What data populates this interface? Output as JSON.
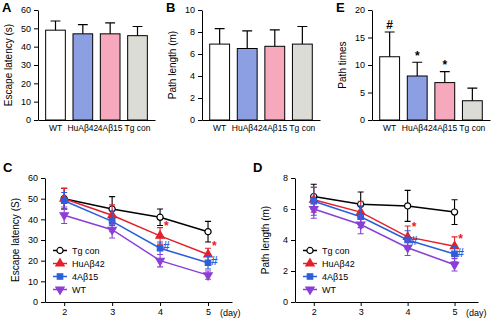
{
  "chart_data": [
    {
      "type": "bar",
      "panel": "A",
      "ylabel": "Escape latency (s)",
      "categories": [
        "WT",
        "HuAβ42",
        "4Aβ15",
        "Tg con"
      ],
      "values": [
        49,
        47,
        47,
        46
      ],
      "errors": [
        5,
        5,
        6,
        5
      ],
      "colors": [
        "#ffffff",
        "#8d9fe3",
        "#f6a9bd",
        "#dcdcd6"
      ],
      "ylim": [
        0,
        60
      ],
      "yticks": [
        0,
        10,
        20,
        30,
        40,
        50,
        60
      ]
    },
    {
      "type": "bar",
      "panel": "B",
      "ylabel": "Path length (m)",
      "categories": [
        "WT",
        "HuAβ42",
        "4Aβ15",
        "Tg con"
      ],
      "values": [
        6.9,
        6.5,
        6.7,
        6.9
      ],
      "errors": [
        1.4,
        1.6,
        1.5,
        1.6
      ],
      "colors": [
        "#ffffff",
        "#8d9fe3",
        "#f6a9bd",
        "#dcdcd6"
      ],
      "ylim": [
        0,
        10
      ],
      "yticks": [
        0,
        2,
        4,
        6,
        8,
        10
      ]
    },
    {
      "type": "bar",
      "panel": "E",
      "ylabel": "Path times",
      "categories": [
        "WT",
        "HuAβ42",
        "4Aβ15",
        "Tg con"
      ],
      "values": [
        11.5,
        8,
        6.8,
        3.5
      ],
      "errors": [
        4.5,
        2.5,
        2,
        2.3
      ],
      "colors": [
        "#ffffff",
        "#8d9fe3",
        "#f6a9bd",
        "#dcdcd6"
      ],
      "ylim": [
        0,
        20
      ],
      "yticks": [
        0,
        5,
        10,
        15,
        20
      ],
      "annotations": [
        {
          "text": "#",
          "x": "WT",
          "y": 16.6,
          "color": "#000000"
        },
        {
          "text": "*",
          "x": "HuAβ42",
          "y": 11,
          "color": "#000000"
        },
        {
          "text": "*",
          "x": "4Aβ15",
          "y": 9.2,
          "color": "#000000"
        }
      ]
    },
    {
      "type": "line",
      "panel": "C",
      "ylabel": "Escape latency (S)",
      "xlabel": "(day)",
      "x": [
        2,
        3,
        4,
        5
      ],
      "xlim": [
        1.6,
        5.5
      ],
      "xticks": [
        2,
        3,
        4,
        5
      ],
      "ylim": [
        0,
        60
      ],
      "yticks": [
        0,
        10,
        20,
        30,
        40,
        50,
        60
      ],
      "legend": "lower left",
      "series": [
        {
          "name": "Tg con",
          "color": "#000000",
          "marker": "circle-open",
          "values": [
            50,
            45,
            41,
            34
          ],
          "errors": [
            5,
            6,
            4,
            5
          ]
        },
        {
          "name": "HuAβ42",
          "color": "#e3202b",
          "marker": "triangle",
          "values": [
            50,
            42,
            32,
            23
          ],
          "errors": [
            5,
            5,
            4,
            3
          ]
        },
        {
          "name": "4Aβ15",
          "color": "#2b5fd8",
          "marker": "square",
          "values": [
            49,
            39,
            26,
            19
          ],
          "errors": [
            4,
            5,
            3,
            3
          ]
        },
        {
          "name": "WT",
          "color": "#8b3fd8",
          "marker": "triangle-down",
          "values": [
            42,
            35,
            20,
            13
          ],
          "errors": [
            4,
            4,
            3,
            2
          ]
        }
      ],
      "annotations": [
        {
          "text": "*",
          "x": 4.13,
          "y": 35,
          "color": "#e3202b"
        },
        {
          "text": "*",
          "x": 5.13,
          "y": 25,
          "color": "#e3202b"
        },
        {
          "text": "#",
          "x": 4.13,
          "y": 25,
          "color": "#2b5fd8"
        },
        {
          "text": "#",
          "x": 5.13,
          "y": 18,
          "color": "#2b5fd8"
        }
      ]
    },
    {
      "type": "line",
      "panel": "D",
      "ylabel": "Path length (m)",
      "xlabel": "(day)",
      "x": [
        2,
        3,
        4,
        5
      ],
      "xlim": [
        1.6,
        5.5
      ],
      "xticks": [
        2,
        3,
        4,
        5
      ],
      "ylim": [
        0,
        8
      ],
      "yticks": [
        0,
        2,
        4,
        6,
        8
      ],
      "legend": "lower left",
      "series": [
        {
          "name": "Tg con",
          "color": "#000000",
          "marker": "circle-open",
          "values": [
            6.8,
            6.3,
            6.2,
            5.8
          ],
          "errors": [
            0.8,
            0.8,
            1.0,
            0.8
          ]
        },
        {
          "name": "HuAβ42",
          "color": "#e3202b",
          "marker": "triangle",
          "values": [
            6.6,
            5.8,
            4.2,
            3.6
          ],
          "errors": [
            0.8,
            0.7,
            0.7,
            0.6
          ]
        },
        {
          "name": "4Aβ15",
          "color": "#2b5fd8",
          "marker": "square",
          "values": [
            6.5,
            5.5,
            4.0,
            3.1
          ],
          "errors": [
            0.9,
            0.7,
            0.6,
            0.5
          ]
        },
        {
          "name": "WT",
          "color": "#8b3fd8",
          "marker": "triangle-down",
          "values": [
            6.0,
            5.0,
            3.5,
            2.4
          ],
          "errors": [
            0.6,
            0.6,
            0.5,
            0.4
          ]
        }
      ],
      "annotations": [
        {
          "text": "*",
          "x": 4.14,
          "y": 4.6,
          "color": "#e3202b"
        },
        {
          "text": "*",
          "x": 5.13,
          "y": 3.8,
          "color": "#e3202b"
        },
        {
          "text": "#",
          "x": 4.14,
          "y": 3.7,
          "color": "#2b5fd8"
        },
        {
          "text": "#",
          "x": 5.13,
          "y": 2.9,
          "color": "#2b5fd8"
        }
      ]
    }
  ]
}
